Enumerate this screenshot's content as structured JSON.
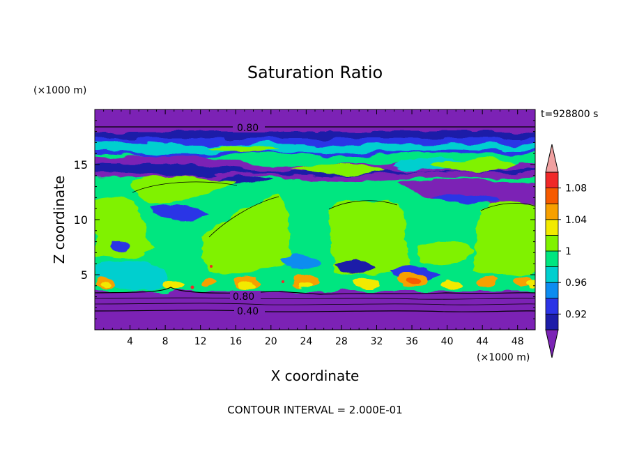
{
  "chart_data": {
    "type": "heatmap",
    "title": "Saturation Ratio",
    "xlabel": "X coordinate",
    "ylabel": "Z coordinate",
    "x_unit": "(×1000 m)",
    "y_unit": "(×1000 m)",
    "time_label": "t=928800 s",
    "footer": "CONTOUR INTERVAL = 2.000E-01",
    "xlim": [
      0,
      50
    ],
    "ylim": [
      0,
      20
    ],
    "x_ticks": [
      "4",
      "8",
      "12",
      "16",
      "20",
      "24",
      "28",
      "32",
      "36",
      "40",
      "44",
      "48"
    ],
    "y_ticks": [
      "5",
      "10",
      "15"
    ],
    "colorbar": {
      "levels": [
        0.9,
        0.92,
        0.94,
        0.96,
        0.98,
        1.0,
        1.02,
        1.04,
        1.06,
        1.08,
        1.1
      ],
      "tick_labels": [
        "0.92",
        "0.96",
        "1",
        "1.04",
        "1.08"
      ],
      "colors": [
        "#7b24b5",
        "#1d1da8",
        "#2b34e6",
        "#0d8cf0",
        "#00cfcf",
        "#00e680",
        "#80f200",
        "#f2ea00",
        "#f7a000",
        "#f65a00",
        "#f02828",
        "#f0a0a0"
      ],
      "extend": "both"
    },
    "contour_labels": [
      "0.80",
      "0.80",
      "0.40"
    ]
  }
}
